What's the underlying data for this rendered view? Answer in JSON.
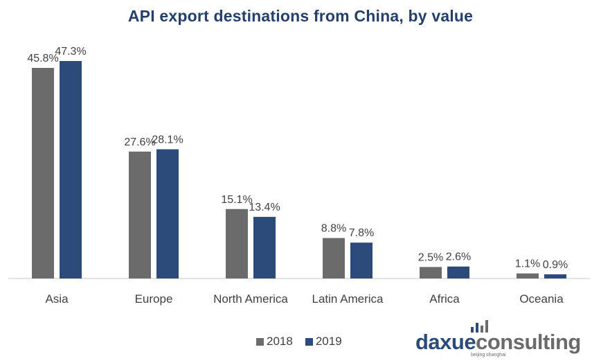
{
  "chart_data": {
    "type": "bar",
    "title": "API export destinations from China, by value",
    "categories": [
      "Asia",
      "Europe",
      "North America",
      "Latin America",
      "Africa",
      "Oceania"
    ],
    "series": [
      {
        "name": "2018",
        "color": "#6b6b6b",
        "values": [
          45.8,
          27.6,
          15.1,
          8.8,
          2.5,
          1.1
        ],
        "labels": [
          "45.8%",
          "27.6%",
          "15.1%",
          "8.8%",
          "2.5%",
          "1.1%"
        ]
      },
      {
        "name": "2019",
        "color": "#2c4a7a",
        "values": [
          47.3,
          28.1,
          13.4,
          7.8,
          2.6,
          0.9
        ],
        "labels": [
          "47.3%",
          "28.1%",
          "13.4%",
          "7.8%",
          "2.6%",
          "0.9%"
        ]
      }
    ],
    "xlabel": "",
    "ylabel": "",
    "ylim": [
      0,
      50
    ],
    "unit": "%",
    "grid": false,
    "legend_position": "bottom",
    "axis_color": "#d9d9d9"
  },
  "logo": {
    "brand_primary": "daxue",
    "brand_secondary": "consulting",
    "tagline": "beijing shanghai"
  }
}
